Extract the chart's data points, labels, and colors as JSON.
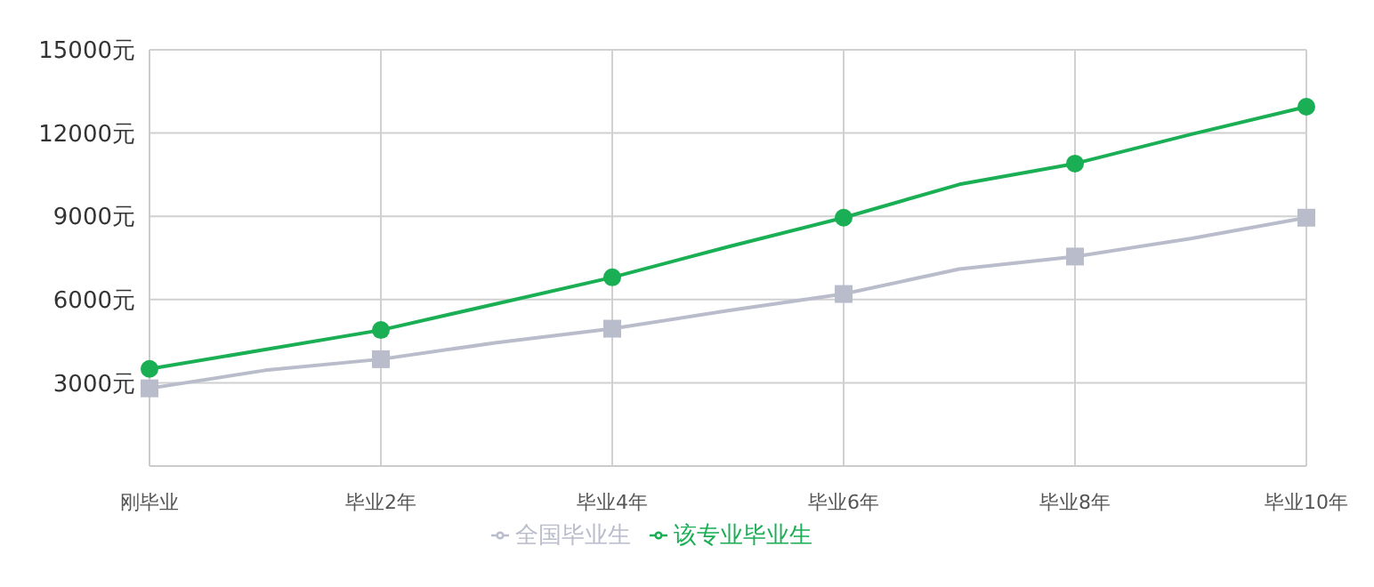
{
  "chart_data": {
    "type": "line",
    "categories": [
      "刚毕业",
      null,
      "毕业2年",
      null,
      "毕业4年",
      null,
      "毕业6年",
      null,
      "毕业8年",
      null,
      "毕业10年"
    ],
    "series": [
      {
        "name": "该专业毕业生",
        "color": "#1aaf54",
        "marker": "circle",
        "values": [
          3500,
          4200,
          4900,
          5850,
          6800,
          7900,
          8950,
          10150,
          10900,
          11950,
          12950
        ]
      },
      {
        "name": "全国毕业生",
        "color": "#b9bccb",
        "marker": "square",
        "values": [
          2800,
          3450,
          3850,
          4450,
          4950,
          5600,
          6200,
          7100,
          7550,
          8200,
          8950
        ]
      }
    ],
    "ylim": [
      0,
      15000
    ],
    "yticks": [
      {
        "value": 3000,
        "label": "3000元"
      },
      {
        "value": 6000,
        "label": "6000元"
      },
      {
        "value": 9000,
        "label": "9000元"
      },
      {
        "value": 12000,
        "label": "12000元"
      },
      {
        "value": 15000,
        "label": "15000元"
      }
    ],
    "grid": true,
    "legend": "bottom"
  }
}
